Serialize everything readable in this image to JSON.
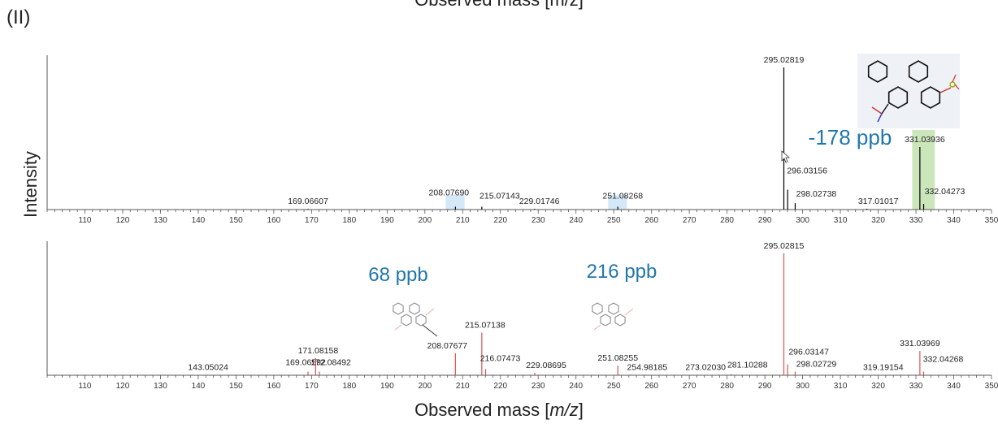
{
  "page": {
    "panel_label": "(II)",
    "top_cut_title": "Observed mass [m/z]",
    "ylabel": "Intensity",
    "xlabel_prefix": "Observed mass [",
    "xlabel_italic": "m/z",
    "xlabel_suffix": "]"
  },
  "chart_data": [
    {
      "type": "bar",
      "name": "top spectrum",
      "xlim": [
        100,
        350
      ],
      "xticks": [
        110,
        120,
        130,
        140,
        150,
        160,
        170,
        180,
        190,
        200,
        210,
        220,
        230,
        240,
        250,
        260,
        270,
        280,
        290,
        300,
        310,
        320,
        330,
        340,
        350
      ],
      "color": "#000000",
      "peaks": [
        {
          "x": 169.06607,
          "y": 0.005,
          "label": "169.06607"
        },
        {
          "x": 208.0769,
          "y": 0.02,
          "label": "208.07690"
        },
        {
          "x": 215.07143,
          "y": 0.02,
          "label": "215.07143"
        },
        {
          "x": 229.01746,
          "y": 0.005,
          "label": "229.01746"
        },
        {
          "x": 251.08268,
          "y": 0.02,
          "label": "251.08268"
        },
        {
          "x": 295.02819,
          "y": 1.0,
          "label": "295.02819"
        },
        {
          "x": 296.03156,
          "y": 0.14,
          "label": "296.03156"
        },
        {
          "x": 298.02738,
          "y": 0.045,
          "label": "298.02738"
        },
        {
          "x": 317.01017,
          "y": 0.006,
          "label": "317.01017"
        },
        {
          "x": 331.03936,
          "y": 0.44,
          "label": "331.03936"
        },
        {
          "x": 332.04273,
          "y": 0.04,
          "label": "332.04273"
        }
      ],
      "highlights": [
        {
          "x0": 205.5,
          "x1": 210.5,
          "color": "#cfe6f6"
        },
        {
          "x0": 248.5,
          "x1": 253.5,
          "color": "#cfe6f6"
        },
        {
          "x0": 329,
          "x1": 335,
          "color": "#c6e3b4"
        }
      ],
      "annotations": [
        {
          "text": "-178 ppb",
          "color": "#2277aa"
        }
      ]
    },
    {
      "type": "bar",
      "name": "bottom spectrum",
      "xlim": [
        100,
        350
      ],
      "xticks": [
        110,
        120,
        130,
        140,
        150,
        160,
        170,
        180,
        190,
        200,
        210,
        220,
        230,
        240,
        250,
        260,
        270,
        280,
        290,
        300,
        310,
        320,
        330,
        340,
        350
      ],
      "color": "#d9534f",
      "peaks": [
        {
          "x": 143.05024,
          "y": 0.005,
          "label": "143.05024"
        },
        {
          "x": 169.06592,
          "y": 0.03,
          "label": "169.06592"
        },
        {
          "x": 171.08158,
          "y": 0.14,
          "label": "171.08158"
        },
        {
          "x": 172.08492,
          "y": 0.03,
          "label": "172.08492"
        },
        {
          "x": 208.07677,
          "y": 0.18,
          "label": "208.07677"
        },
        {
          "x": 215.07138,
          "y": 0.35,
          "label": "215.07138"
        },
        {
          "x": 216.07473,
          "y": 0.05,
          "label": "216.07473"
        },
        {
          "x": 229.08695,
          "y": 0.02,
          "label": "229.08695"
        },
        {
          "x": 251.08255,
          "y": 0.08,
          "label": "251.08255"
        },
        {
          "x": 254.98185,
          "y": 0.005,
          "label": "254.98185"
        },
        {
          "x": 273.0203,
          "y": 0.005,
          "label": "273.02030"
        },
        {
          "x": 281.10288,
          "y": 0.01,
          "label": "281.10288"
        },
        {
          "x": 295.02815,
          "y": 1.0,
          "label": "295.02815"
        },
        {
          "x": 296.03147,
          "y": 0.09,
          "label": "296.03147"
        },
        {
          "x": 298.02729,
          "y": 0.03,
          "label": "298.02729"
        },
        {
          "x": 319.19154,
          "y": 0.005,
          "label": "319.19154"
        },
        {
          "x": 331.03969,
          "y": 0.2,
          "label": "331.03969"
        },
        {
          "x": 332.04268,
          "y": 0.03,
          "label": "332.04268"
        }
      ],
      "annotations": [
        {
          "text": "68 ppb",
          "color": "#2277aa"
        },
        {
          "text": "216 ppb",
          "color": "#2277aa"
        }
      ]
    }
  ]
}
